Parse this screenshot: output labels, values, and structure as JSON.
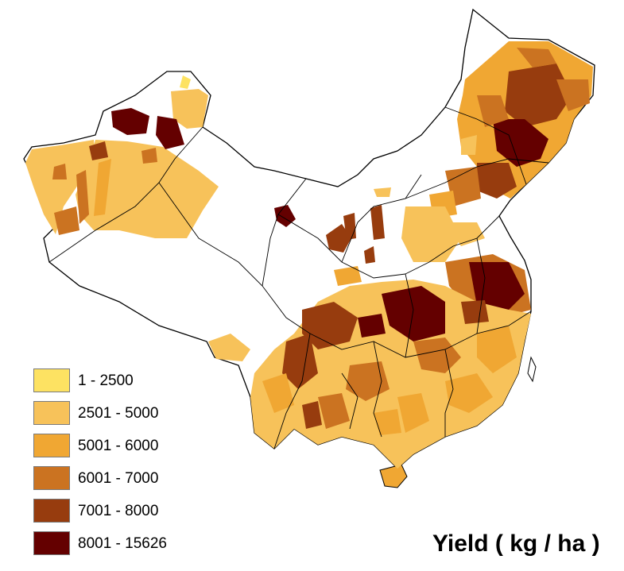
{
  "map": {
    "title": "Yield ( kg / ha )",
    "legend": [
      {
        "label": "1 - 2500",
        "color": "#FDE262"
      },
      {
        "label": "2501 - 5000",
        "color": "#F7C25A"
      },
      {
        "label": "5001 - 6000",
        "color": "#F0A733"
      },
      {
        "label": "6001 - 7000",
        "color": "#CB7321"
      },
      {
        "label": "7001 - 8000",
        "color": "#973C0E"
      },
      {
        "label": "8001 - 15626",
        "color": "#640000"
      }
    ],
    "colors": {
      "border": "#000000",
      "no_data": "#ffffff",
      "background": "#ffffff"
    }
  }
}
